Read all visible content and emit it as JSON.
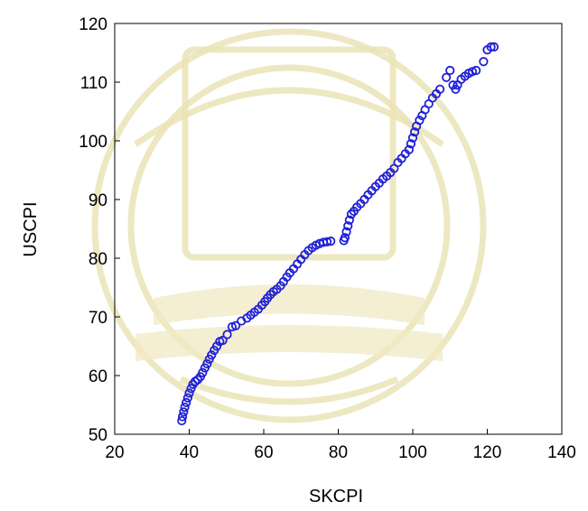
{
  "colors": {
    "marker": "#1f1fd6",
    "axis": "#000000",
    "watermark": "#e9e2b3"
  },
  "chart_data": {
    "type": "scatter",
    "title": "",
    "xlabel": "SKCPI",
    "ylabel": "USCPI",
    "xlim": [
      20,
      140
    ],
    "ylim": [
      50,
      120
    ],
    "xticks": [
      20,
      40,
      60,
      80,
      100,
      120,
      140
    ],
    "yticks": [
      50,
      60,
      70,
      80,
      90,
      100,
      110,
      120
    ],
    "marker": "hollow-circle",
    "grid": false,
    "legend": "none",
    "series": [
      {
        "x": [
          38.0,
          38.2,
          38.5,
          38.8,
          39.2,
          39.6,
          40.0,
          40.5,
          41.0,
          41.6,
          42.3,
          43.0,
          43.6,
          44.2,
          44.8,
          45.4,
          46.0,
          46.7,
          47.4,
          48.2,
          49.0,
          50.2,
          51.5,
          52.5,
          54.0,
          55.5,
          56.5,
          57.5,
          58.5,
          59.5,
          60.3,
          61.0,
          61.8,
          62.6,
          63.5,
          64.5,
          65.3,
          66.2,
          67.0,
          68.0,
          69.0,
          70.0,
          71.0,
          72.0,
          73.0,
          74.0,
          75.0,
          76.0,
          77.0,
          78.0,
          81.5,
          81.8,
          82.2,
          82.6,
          83.0,
          83.5,
          84.2,
          85.0,
          86.0,
          87.0,
          88.0,
          89.0,
          90.0,
          91.0,
          92.0,
          93.0,
          94.0,
          95.0,
          96.0,
          97.0,
          98.0,
          99.0,
          99.5,
          100.0,
          100.5,
          101.0,
          101.8,
          102.5,
          103.3,
          104.3,
          105.3,
          106.3,
          107.3,
          109.0,
          110.0,
          110.8,
          111.5,
          112.0,
          113.0,
          114.0,
          115.0,
          116.0,
          117.0,
          119.0,
          120.0,
          121.0,
          121.8
        ],
        "y": [
          52.3,
          53.0,
          53.8,
          54.6,
          55.4,
          56.2,
          57.0,
          57.8,
          58.5,
          59.0,
          59.3,
          59.8,
          60.5,
          61.3,
          62.0,
          62.8,
          63.5,
          64.3,
          65.0,
          65.8,
          66.0,
          67.0,
          68.3,
          68.5,
          69.3,
          69.8,
          70.3,
          70.8,
          71.3,
          72.0,
          72.6,
          73.2,
          73.8,
          74.3,
          74.7,
          75.3,
          76.0,
          76.8,
          77.5,
          78.2,
          79.0,
          79.8,
          80.6,
          81.3,
          81.8,
          82.2,
          82.5,
          82.7,
          82.8,
          82.9,
          83.0,
          83.5,
          84.5,
          85.5,
          86.5,
          87.5,
          88.0,
          88.7,
          89.3,
          90.0,
          90.8,
          91.5,
          92.2,
          92.8,
          93.5,
          94.0,
          94.6,
          95.3,
          96.3,
          97.0,
          97.8,
          98.5,
          99.5,
          100.5,
          101.5,
          102.5,
          103.5,
          104.3,
          105.3,
          106.3,
          107.3,
          108.0,
          108.8,
          110.8,
          112.0,
          109.5,
          108.8,
          109.5,
          110.5,
          111.0,
          111.5,
          111.8,
          112.0,
          113.5,
          115.5,
          116.0,
          116.0
        ]
      }
    ]
  }
}
